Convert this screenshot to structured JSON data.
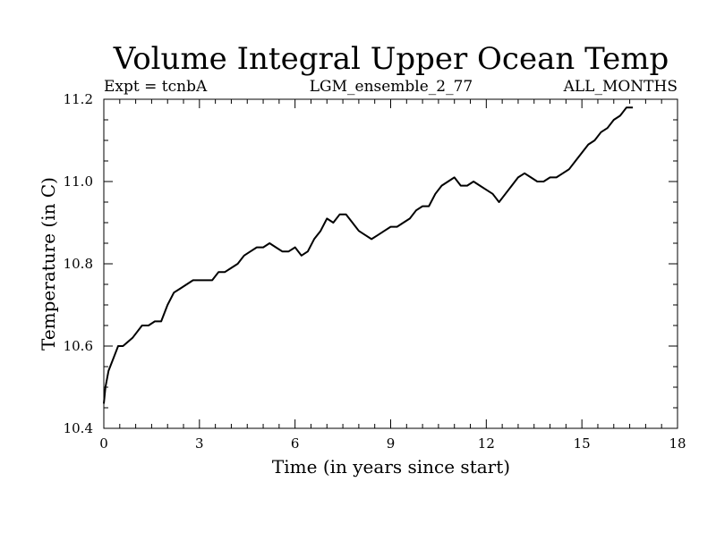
{
  "chart_data": {
    "type": "line",
    "title": "Volume Integral Upper Ocean Temp",
    "subtitle_left": "Expt = tcnbA",
    "subtitle_center": "LGM_ensemble_2_77",
    "subtitle_right": "ALL_MONTHS",
    "xlabel": "Time (in years since start)",
    "ylabel": "Temperature (in C)",
    "xlim": [
      0,
      18
    ],
    "ylim": [
      10.4,
      11.2
    ],
    "xticks": [
      0,
      3,
      6,
      9,
      12,
      15,
      18
    ],
    "yticks": [
      10.4,
      10.6,
      10.8,
      11.0,
      11.2
    ],
    "xtick_labels": [
      "0",
      "3",
      "6",
      "9",
      "12",
      "15",
      "18"
    ],
    "ytick_labels": [
      "10.4",
      "10.6",
      "10.8",
      "11.0",
      "11.2"
    ],
    "grid": false,
    "series": [
      {
        "name": "Volume Integral Upper Ocean Temp",
        "color": "#000000",
        "x": [
          0.0,
          0.05,
          0.15,
          0.3,
          0.45,
          0.6,
          0.9,
          1.2,
          1.4,
          1.6,
          1.8,
          2.0,
          2.2,
          2.4,
          2.6,
          2.8,
          3.0,
          3.2,
          3.4,
          3.6,
          3.8,
          4.0,
          4.2,
          4.4,
          4.6,
          4.8,
          5.0,
          5.2,
          5.4,
          5.6,
          5.8,
          6.0,
          6.2,
          6.4,
          6.6,
          6.8,
          7.0,
          7.2,
          7.4,
          7.6,
          7.8,
          8.0,
          8.2,
          8.4,
          8.6,
          8.8,
          9.0,
          9.2,
          9.4,
          9.6,
          9.8,
          10.0,
          10.2,
          10.4,
          10.6,
          10.8,
          11.0,
          11.2,
          11.4,
          11.6,
          11.8,
          12.0,
          12.2,
          12.4,
          12.6,
          12.8,
          13.0,
          13.2,
          13.4,
          13.6,
          13.8,
          14.0,
          14.2,
          14.4,
          14.6,
          14.8,
          15.0,
          15.2,
          15.4,
          15.6,
          15.8,
          16.0,
          16.2,
          16.4,
          16.6
        ],
        "values": [
          10.46,
          10.5,
          10.54,
          10.57,
          10.6,
          10.6,
          10.62,
          10.65,
          10.65,
          10.66,
          10.66,
          10.7,
          10.73,
          10.74,
          10.75,
          10.76,
          10.76,
          10.76,
          10.76,
          10.78,
          10.78,
          10.79,
          10.8,
          10.82,
          10.83,
          10.84,
          10.84,
          10.85,
          10.84,
          10.83,
          10.83,
          10.84,
          10.82,
          10.83,
          10.86,
          10.88,
          10.91,
          10.9,
          10.92,
          10.92,
          10.9,
          10.88,
          10.87,
          10.86,
          10.87,
          10.88,
          10.89,
          10.89,
          10.9,
          10.91,
          10.93,
          10.94,
          10.94,
          10.97,
          10.99,
          11.0,
          11.01,
          10.99,
          10.99,
          11.0,
          10.99,
          10.98,
          10.97,
          10.95,
          10.97,
          10.99,
          11.01,
          11.02,
          11.01,
          11.0,
          11.0,
          11.01,
          11.01,
          11.02,
          11.03,
          11.05,
          11.07,
          11.09,
          11.1,
          11.12,
          11.13,
          11.15,
          11.16,
          11.18,
          11.18
        ]
      }
    ]
  }
}
